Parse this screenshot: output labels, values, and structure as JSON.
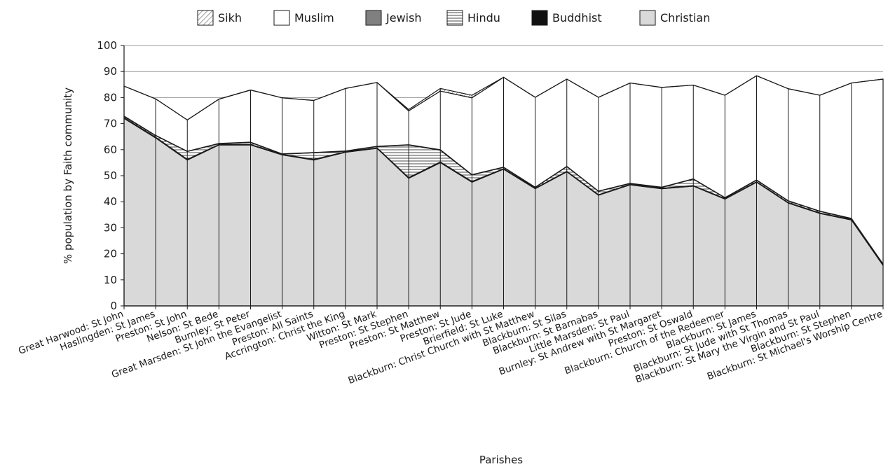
{
  "chart_data": {
    "type": "area",
    "stacked": true,
    "title": "",
    "xlabel": "Parishes",
    "ylabel": "% population by Faith community",
    "ylim": [
      0,
      100
    ],
    "yticks": [
      0,
      10,
      20,
      30,
      40,
      50,
      60,
      70,
      80,
      90,
      100
    ],
    "grid": "horizontal",
    "legend_position": "top",
    "legend": [
      "Sikh",
      "Muslim",
      "Jewish",
      "Hindu",
      "Buddhist",
      "Christian"
    ],
    "categories": [
      "Great Harwood:  St John",
      "Haslingden: St James",
      "Preston: St John",
      "Nelson: St Bede",
      "Burnley: St Peter",
      "Great Marsden: St John the Evangelist",
      "Preston: All Saints",
      "Accrington: Christ the King",
      "Witton: St Mark",
      "Preston: St Stephen",
      "Preston: St Matthew",
      "Preston: St Jude",
      "Brierfield: St Luke",
      "Blackburn: Christ Church with St Matthew",
      "Blackburn: St Silas",
      "Blackburn: St Barnabas",
      "Little Marsden: St Paul",
      "Burnley: St Andrew with St Margaret",
      "Preston: St Oswald",
      "Blackburn: Church of the Redeemer",
      "Blackburn: St James",
      "Blackburn: St Jude with St Thomas",
      "Blackburn: St Mary the Virgin and St Paul",
      "Blackburn: St Stephen",
      "Blackburn: St Michael's Worship Centre"
    ],
    "series": [
      {
        "name": "Christian",
        "values": [
          72.0,
          64.5,
          56.0,
          61.8,
          61.8,
          58.0,
          56.0,
          59.0,
          60.5,
          49.0,
          55.0,
          47.5,
          52.5,
          45.0,
          51.5,
          42.5,
          46.5,
          45.0,
          46.0,
          41.0,
          47.5,
          39.5,
          35.5,
          33.0,
          15.5
        ]
      },
      {
        "name": "Buddhist",
        "values": [
          0.3,
          0.3,
          0.3,
          0.2,
          0.2,
          0.2,
          0.3,
          0.2,
          0.2,
          0.3,
          0.3,
          0.3,
          0.2,
          0.2,
          0.2,
          0.2,
          0.2,
          0.2,
          0.2,
          0.2,
          0.2,
          0.2,
          0.2,
          0.2,
          0.2
        ]
      },
      {
        "name": "Hindu",
        "values": [
          0.5,
          0.6,
          3.0,
          0.3,
          0.8,
          0.1,
          2.5,
          0.2,
          0.5,
          12.5,
          4.5,
          2.5,
          0.5,
          0.3,
          1.8,
          1.3,
          0.3,
          0.3,
          2.5,
          0.3,
          0.6,
          0.6,
          0.6,
          0.3,
          0.3
        ]
      },
      {
        "name": "Jewish",
        "values": [
          0.1,
          0.1,
          0.1,
          0.1,
          0.1,
          0.1,
          0.1,
          0.1,
          0.1,
          0.1,
          0.2,
          0.1,
          0.1,
          0.1,
          0.1,
          0.1,
          0.1,
          0.1,
          0.1,
          0.1,
          0.1,
          0.1,
          0.1,
          0.1,
          0.1
        ]
      },
      {
        "name": "Muslim",
        "values": [
          11.5,
          14.0,
          12.0,
          17.0,
          20.0,
          21.5,
          20.0,
          24.0,
          24.5,
          13.0,
          22.5,
          29.5,
          34.5,
          34.5,
          33.5,
          36.0,
          38.5,
          38.3,
          36.0,
          39.3,
          40.0,
          43.0,
          44.5,
          52.0,
          71.0
        ]
      },
      {
        "name": "Sikh",
        "values": [
          0.0,
          0.0,
          0.0,
          0.0,
          0.0,
          0.0,
          0.0,
          0.0,
          0.0,
          0.5,
          1.0,
          1.0,
          0.0,
          0.0,
          0.0,
          0.0,
          0.0,
          0.0,
          0.0,
          0.0,
          0.0,
          0.0,
          0.0,
          0.0,
          0.0
        ]
      }
    ]
  }
}
